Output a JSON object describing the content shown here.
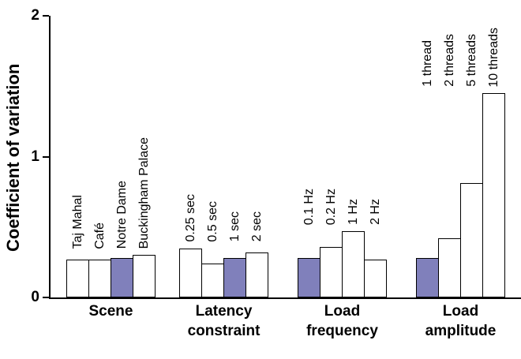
{
  "chart_data": {
    "type": "bar",
    "title": "",
    "ylabel": "Coefficient of variation",
    "xlabel": "",
    "ylim": [
      0,
      2
    ],
    "yticks": [
      0,
      1,
      2
    ],
    "grid": false,
    "legend": "none",
    "colors": {
      "bar_fill_default": "#ffffff",
      "bar_fill_highlight": "#8080bb",
      "bar_border": "#000000",
      "axis": "#000000"
    },
    "groups": [
      {
        "label": "Scene",
        "bars": [
          {
            "name": "Taj Mahal",
            "value": 0.27,
            "highlight": false
          },
          {
            "name": "Café",
            "value": 0.27,
            "highlight": false
          },
          {
            "name": "Notre Dame",
            "value": 0.28,
            "highlight": true
          },
          {
            "name": "Buckingham Palace",
            "value": 0.3,
            "highlight": false
          }
        ]
      },
      {
        "label": "Latency constraint",
        "bars": [
          {
            "name": "0.25 sec",
            "value": 0.35,
            "highlight": false
          },
          {
            "name": "0.5 sec",
            "value": 0.24,
            "highlight": false
          },
          {
            "name": "1 sec",
            "value": 0.28,
            "highlight": true
          },
          {
            "name": "2 sec",
            "value": 0.32,
            "highlight": false
          }
        ]
      },
      {
        "label": "Load frequency",
        "bars": [
          {
            "name": "0.1 Hz",
            "value": 0.28,
            "highlight": true
          },
          {
            "name": "0.2 Hz",
            "value": 0.36,
            "highlight": false
          },
          {
            "name": "1 Hz",
            "value": 0.47,
            "highlight": false
          },
          {
            "name": "2 Hz",
            "value": 0.27,
            "highlight": false
          }
        ]
      },
      {
        "label": "Load amplitude",
        "bars": [
          {
            "name": "1 thread",
            "value": 0.28,
            "highlight": true
          },
          {
            "name": "2 threads",
            "value": 0.42,
            "highlight": false
          },
          {
            "name": "5 threads",
            "value": 0.81,
            "highlight": false
          },
          {
            "name": "10 threads",
            "value": 1.45,
            "highlight": false
          }
        ]
      }
    ]
  }
}
